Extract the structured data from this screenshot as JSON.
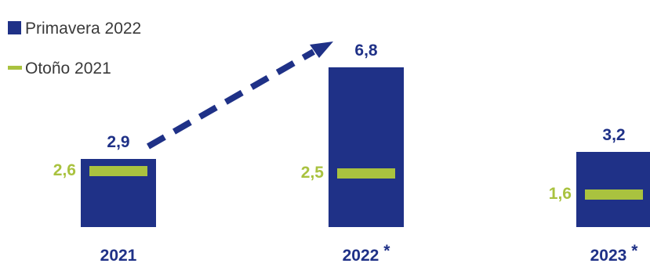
{
  "chart_data": {
    "type": "bar",
    "categories": [
      "2021",
      "2022",
      "2023"
    ],
    "category_suffix": [
      "",
      "*",
      "*"
    ],
    "series": [
      {
        "name": "Primavera 2022",
        "values": [
          2.9,
          6.8,
          3.2
        ],
        "labels": [
          "2,9",
          "6,8",
          "3,2"
        ],
        "color": "#1f3187"
      },
      {
        "name": "Otoño 2021",
        "values": [
          2.6,
          2.5,
          1.6
        ],
        "labels": [
          "2,6",
          "2,5",
          "1,6"
        ],
        "color": "#a9c23f"
      }
    ],
    "annotation": {
      "type": "dashed-arrow",
      "from": "2021",
      "to": "2022"
    },
    "ylim": [
      0,
      7.2
    ],
    "legend": "top-left"
  },
  "colors": {
    "primary": "#1f3187",
    "secondary": "#a9c23f",
    "arrow": "#1f3187"
  }
}
